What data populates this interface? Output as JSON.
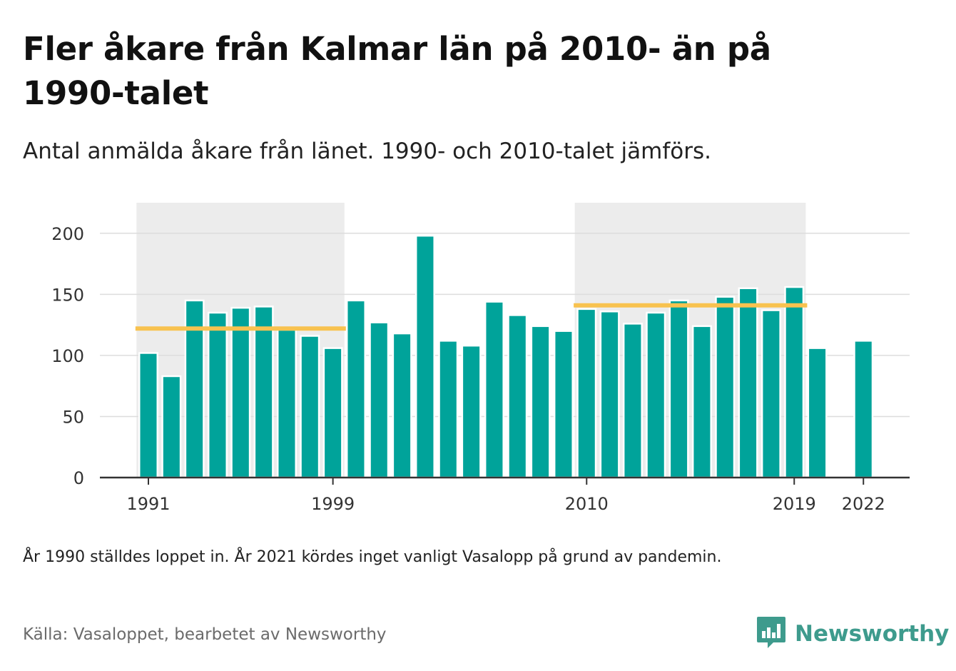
{
  "title": "Fler åkare från Kalmar län på 2010- än på 1990-talet",
  "subtitle": "Antal anmälda åkare från länet. 1990- och 2010-talet jämförs.",
  "note": "År 1990 ställdes loppet in. År 2021 kördes inget vanligt Vasalopp på grund av pandemin.",
  "source": "Källa: Vasaloppet, bearbetet av Newsworthy",
  "brand": {
    "name": "Newsworthy",
    "icon": "newsworthy-logo-icon"
  },
  "colors": {
    "bar": "#00a39a",
    "average": "#f8c24f",
    "period_shade": "#ececec",
    "grid": "#dddddd",
    "axis": "#333333",
    "brand": "#3e9b8d"
  },
  "chart_data": {
    "type": "bar",
    "x": [
      1991,
      1992,
      1993,
      1994,
      1995,
      1996,
      1997,
      1998,
      1999,
      2000,
      2001,
      2002,
      2003,
      2004,
      2005,
      2006,
      2007,
      2008,
      2009,
      2010,
      2011,
      2012,
      2013,
      2014,
      2015,
      2016,
      2017,
      2018,
      2019,
      2020,
      2021,
      2022
    ],
    "values": [
      102,
      83,
      145,
      135,
      139,
      140,
      121,
      116,
      106,
      145,
      127,
      118,
      198,
      112,
      108,
      144,
      133,
      124,
      120,
      138,
      136,
      126,
      135,
      145,
      124,
      148,
      155,
      137,
      156,
      106,
      null,
      112
    ],
    "ylim": [
      0,
      225
    ],
    "yticks": [
      0,
      50,
      100,
      150,
      200
    ],
    "xtick_labels": [
      "1991",
      "1999",
      "2010",
      "2019",
      "2022"
    ],
    "highlight_periods": [
      {
        "start": 1991,
        "end": 1999,
        "average": 122
      },
      {
        "start": 2010,
        "end": 2019,
        "average": 141
      }
    ],
    "grid": true,
    "legend": "none"
  }
}
